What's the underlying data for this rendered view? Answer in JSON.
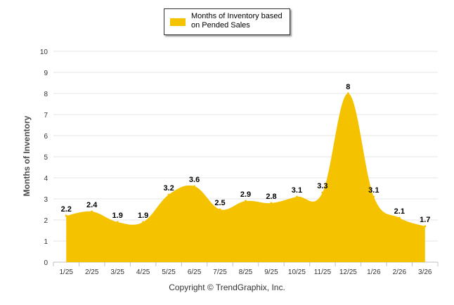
{
  "chart_data": {
    "type": "area",
    "legend": "Months of Inventory based on Pended Sales",
    "ylabel": "Months of Inventory",
    "xlabel": "",
    "categories": [
      "1/25",
      "2/25",
      "3/25",
      "4/25",
      "5/25",
      "6/25",
      "7/25",
      "8/25",
      "9/25",
      "10/25",
      "11/25",
      "12/25",
      "1/26",
      "2/26",
      "3/26"
    ],
    "series": [
      {
        "name": "Months of Inventory based on Pended Sales",
        "values": [
          2.2,
          2.4,
          1.9,
          1.9,
          3.2,
          3.6,
          2.5,
          2.9,
          2.8,
          3.1,
          3.3,
          8,
          3.1,
          2.1,
          1.7
        ]
      }
    ],
    "data_labels": [
      "2.2",
      "2.4",
      "1.9",
      "1.9",
      "3.2",
      "3.6",
      "2.5",
      "2.9",
      "2.8",
      "3.1",
      "3.3",
      "8",
      "3.1",
      "2.1",
      "1.7"
    ],
    "ylim": [
      0,
      10
    ],
    "yticks": [
      "0",
      "1",
      "2",
      "3",
      "4",
      "5",
      "6",
      "7",
      "8",
      "9",
      "10"
    ],
    "grid": true,
    "legend_position": "top-center",
    "color": "#f5c200"
  },
  "footer": {
    "copyright": "Copyright © TrendGraphix, Inc."
  }
}
